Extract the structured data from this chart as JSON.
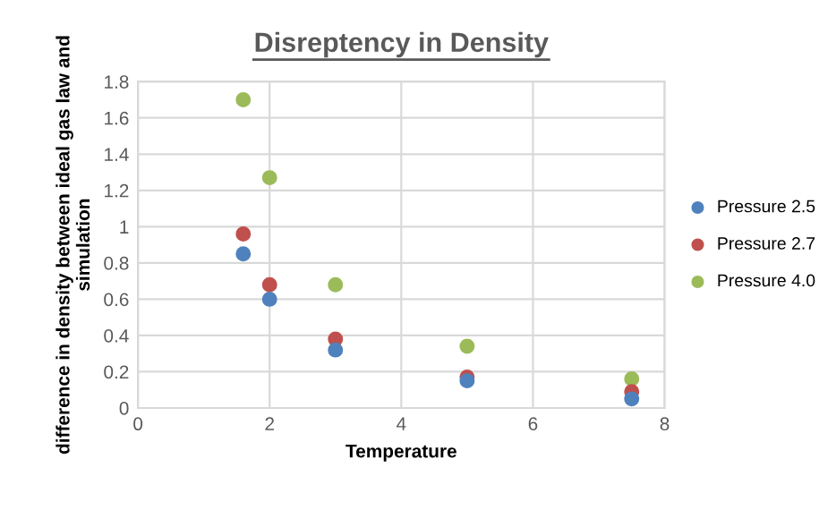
{
  "chart_data": {
    "type": "scatter",
    "title": "Disreptency in Density",
    "xlabel": "Temperature",
    "ylabel": "difference in density between ideal gas law and simulation",
    "x": [
      1.6,
      2,
      3,
      5,
      7.5
    ],
    "series": [
      {
        "name": "Pressure 2.5",
        "color": "#4f81bd",
        "values": [
          0.85,
          0.6,
          0.32,
          0.15,
          0.05
        ]
      },
      {
        "name": "Pressure 2.7",
        "color": "#c0504d",
        "values": [
          0.96,
          0.68,
          0.38,
          0.17,
          0.09
        ]
      },
      {
        "name": "Pressure 4.0",
        "color": "#9bbb59",
        "values": [
          1.7,
          1.27,
          0.68,
          0.34,
          0.16
        ]
      }
    ],
    "xlim": [
      0,
      8
    ],
    "xticks": [
      0,
      2,
      4,
      6,
      8
    ],
    "ylim": [
      0,
      1.8
    ],
    "yticks": [
      0,
      0.2,
      0.4,
      0.6,
      0.8,
      1,
      1.2,
      1.4,
      1.6,
      1.8
    ],
    "grid": true,
    "legend": "right",
    "marker": "circle"
  }
}
